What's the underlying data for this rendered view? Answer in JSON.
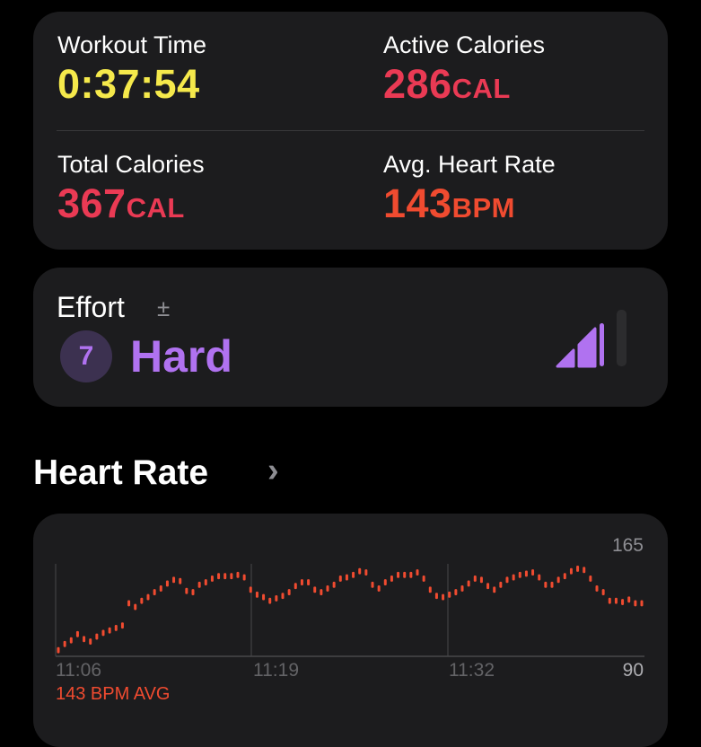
{
  "summary": {
    "workout_time": {
      "label": "Workout Time",
      "value": "0:37:54",
      "color": "#f5e94b"
    },
    "active_calories": {
      "label": "Active Calories",
      "value": "286",
      "unit": "CAL",
      "color": "#ea3a54"
    },
    "total_calories": {
      "label": "Total Calories",
      "value": "367",
      "unit": "CAL",
      "color": "#ea3a54"
    },
    "avg_heart_rate": {
      "label": "Avg. Heart Rate",
      "value": "143",
      "unit": "BPM",
      "color": "#f04b30"
    }
  },
  "effort": {
    "label": "Effort",
    "adjust_icon": "plus-minus-icon",
    "score": "7",
    "level": "Hard",
    "level_fraction": 0.75,
    "color": "#b072f0"
  },
  "heart_rate": {
    "title": "Heart Rate",
    "chevron": "›",
    "y_max_label": "165",
    "y_min_label": "90",
    "x_labels": [
      "11:06",
      "11:19",
      "11:32"
    ],
    "avg_label": "143 BPM AVG",
    "color": "#f04b30",
    "chart_data": {
      "type": "bar",
      "ylim": [
        90,
        165
      ],
      "values": [
        95,
        100,
        103,
        108,
        104,
        102,
        106,
        109,
        111,
        113,
        115,
        133,
        130,
        135,
        138,
        142,
        145,
        149,
        152,
        151,
        143,
        142,
        148,
        150,
        153,
        155,
        155,
        155,
        156,
        154,
        144,
        140,
        138,
        135,
        137,
        139,
        142,
        147,
        150,
        150,
        144,
        142,
        145,
        148,
        153,
        154,
        156,
        159,
        158,
        148,
        145,
        150,
        153,
        156,
        156,
        156,
        158,
        153,
        144,
        139,
        138,
        140,
        142,
        145,
        149,
        153,
        152,
        147,
        144,
        148,
        152,
        154,
        156,
        157,
        158,
        154,
        148,
        148,
        152,
        155,
        159,
        161,
        160,
        153,
        145,
        142,
        135,
        135,
        134,
        136,
        133,
        133
      ]
    }
  }
}
